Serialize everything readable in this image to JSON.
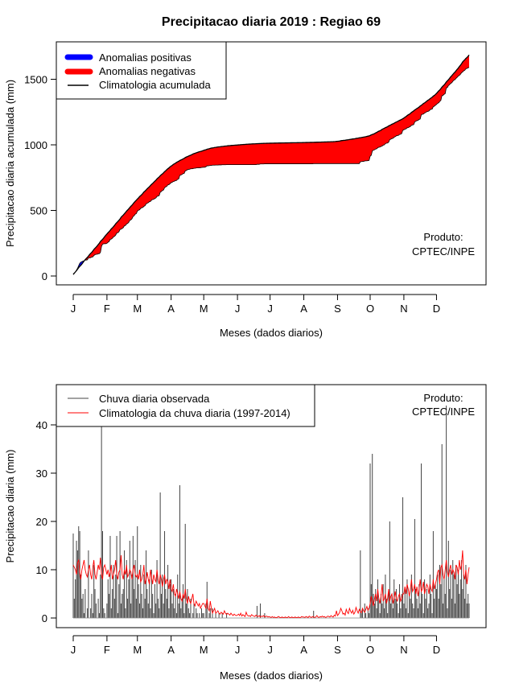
{
  "chart_data": [
    {
      "type": "area",
      "title": "Precipitacao diaria 2019 : Regiao 69",
      "xlabel": "Meses (dados diarios)",
      "ylabel": "Precipitacao diaria acumulada (mm)",
      "x_tick_labels": [
        "J",
        "F",
        "M",
        "A",
        "M",
        "J",
        "J",
        "A",
        "S",
        "O",
        "N",
        "D"
      ],
      "y_ticks": [
        0,
        500,
        1000,
        1500
      ],
      "ylim": [
        0,
        1750
      ],
      "legend": {
        "position": "top-left",
        "entries": [
          "Anomalias positivas",
          "Anomalias negativas",
          "Climatologia acumulada"
        ]
      },
      "annotation": [
        "Produto:",
        "CPTEC/INPE"
      ],
      "series_source": "cumulative sums of daily series in chart 2",
      "colors": {
        "positive": "#0000ff",
        "negative": "#ff0000",
        "climatology": "#000000"
      }
    },
    {
      "type": "bar",
      "xlabel": "Meses (dados diarios)",
      "ylabel": "Precipitacao diaria (mm)",
      "x_tick_labels": [
        "J",
        "F",
        "M",
        "A",
        "M",
        "J",
        "J",
        "A",
        "S",
        "O",
        "N",
        "D"
      ],
      "y_ticks": [
        0,
        10,
        20,
        30,
        40
      ],
      "ylim": [
        0,
        48
      ],
      "legend": {
        "position": "top-left",
        "entries": [
          "Chuva diaria observada",
          "Climatologia da chuva diaria (1997-2014)"
        ]
      },
      "annotation": [
        "Produto:",
        "CPTEC/INPE"
      ],
      "colors": {
        "observed": "#444444",
        "climatology": "#ff0000"
      },
      "month_lengths": [
        31,
        28,
        31,
        30,
        31,
        30,
        31,
        31,
        30,
        31,
        30,
        31
      ],
      "observed": [
        17.5,
        4,
        8,
        16,
        14,
        19,
        18,
        9,
        4,
        5,
        1,
        6,
        0,
        2,
        14,
        0,
        2,
        5,
        1,
        11,
        6,
        3,
        0,
        4,
        1,
        9,
        46,
        18,
        2,
        1,
        0,
        3,
        8,
        5,
        17,
        2,
        6,
        11,
        4,
        9,
        17,
        1,
        7,
        18,
        3,
        5,
        6,
        14,
        2,
        12,
        4,
        8,
        16,
        3,
        9,
        17,
        6,
        12,
        4,
        19,
        7,
        3,
        11,
        5,
        2,
        9,
        4,
        14,
        6,
        3,
        8,
        2,
        10,
        5,
        1,
        7,
        3,
        12,
        4,
        2,
        26,
        5,
        9,
        3,
        18,
        6,
        4,
        11,
        2,
        7,
        8,
        3,
        6,
        2,
        5,
        1,
        9,
        3,
        27.5,
        2,
        4,
        7,
        1,
        19.5,
        3,
        6,
        2,
        1,
        4,
        0,
        1,
        3,
        0,
        2,
        1,
        0,
        1,
        0,
        2,
        1,
        1,
        0,
        3,
        7.5,
        0,
        1,
        2,
        0,
        2,
        0,
        0,
        1,
        0,
        0,
        1,
        0,
        0,
        1,
        0,
        0,
        0,
        1,
        0,
        0,
        0,
        0,
        0,
        0,
        0,
        0,
        0,
        0,
        0,
        0,
        0,
        0,
        0,
        0,
        0,
        0,
        0,
        0,
        0,
        0,
        0,
        0,
        0,
        0,
        0,
        2.5,
        0,
        0,
        3,
        0,
        0,
        0,
        1,
        0,
        0,
        0,
        0,
        0,
        0,
        0,
        0,
        0,
        0,
        0,
        0,
        0,
        0,
        0,
        0,
        0,
        0,
        0,
        0,
        0,
        0,
        0,
        0,
        0,
        0,
        0,
        0,
        0,
        0,
        0,
        0,
        0,
        0,
        0,
        0,
        0,
        0,
        0,
        0,
        0,
        0,
        0,
        0,
        1.5,
        0,
        0,
        0,
        0,
        0,
        0,
        0,
        0,
        0,
        0,
        0,
        0,
        0,
        0,
        0,
        0,
        0,
        0,
        0,
        0,
        0,
        0,
        0,
        0,
        0,
        0,
        0,
        0,
        0,
        0,
        0,
        0,
        0,
        0,
        0,
        0,
        0,
        0,
        0,
        0,
        0,
        0,
        14,
        1,
        2,
        0,
        3,
        1,
        0,
        2,
        1,
        32,
        7,
        34,
        5,
        3,
        6,
        2,
        8,
        4,
        1,
        5,
        3,
        7,
        2,
        9,
        4,
        1,
        6,
        20,
        3,
        5,
        2,
        8,
        4,
        6,
        3,
        1,
        7,
        2,
        5,
        25,
        3,
        6,
        2,
        8,
        1,
        5,
        4,
        9,
        3,
        2,
        20.5,
        6,
        4,
        2,
        7,
        3,
        32,
        5,
        1,
        8,
        4,
        6,
        2,
        3,
        9,
        5,
        1,
        18,
        4,
        7,
        6,
        9,
        4,
        11,
        7,
        36,
        3,
        8,
        5,
        44,
        2,
        16,
        6,
        10,
        4,
        12,
        9,
        3,
        11,
        7,
        10,
        5,
        8,
        12,
        6,
        9,
        4,
        11,
        3,
        5,
        3
      ],
      "climatology": [
        11,
        10.5,
        10,
        9,
        11.5,
        12,
        9.5,
        8,
        10,
        11,
        12,
        10,
        9,
        8.5,
        10,
        11,
        9,
        8,
        10.5,
        12,
        9,
        8,
        9.5,
        11,
        10,
        12.5,
        9,
        8,
        10.5,
        11,
        10,
        9,
        10,
        8.5,
        9.5,
        11,
        8,
        9,
        10,
        12,
        9,
        8,
        9.5,
        10,
        13,
        9,
        8,
        10,
        9,
        11,
        8.5,
        9,
        10,
        9.5,
        8,
        10,
        11,
        9,
        8.5,
        9,
        8,
        10,
        7.5,
        8,
        9,
        11,
        7,
        8,
        9.5,
        8,
        7,
        10,
        8.5,
        7,
        9,
        8,
        7.5,
        10,
        8,
        7,
        9,
        8,
        6.5,
        8,
        9,
        7,
        8,
        7.5,
        6,
        8,
        6,
        5.5,
        7,
        5,
        4.5,
        6,
        5,
        4,
        5.5,
        4,
        3.5,
        5,
        4,
        6,
        4,
        3,
        4.5,
        3.5,
        3,
        4,
        5,
        3,
        2.5,
        3.5,
        3,
        2.5,
        3,
        2,
        2.5,
        3,
        3,
        2.5,
        2,
        4,
        2,
        1.5,
        3.5,
        2,
        1,
        1.5,
        2,
        1,
        1.2,
        1.5,
        1,
        0.8,
        1.2,
        1,
        0.8,
        1.5,
        1,
        0.7,
        1,
        0.8,
        0.6,
        1,
        0.7,
        0.5,
        0.8,
        0.6,
        0.5,
        0.6,
        0.8,
        0.5,
        1,
        0.4,
        0.7,
        0.5,
        0.3,
        1.2,
        0.6,
        0.4,
        0.5,
        0.3,
        0.7,
        0.5,
        0.4,
        0.3,
        0.6,
        0.4,
        0.3,
        0.5,
        0.2,
        0.4,
        0.3,
        0.5,
        0.2,
        0.3,
        0.4,
        0.2,
        0.3,
        0.2,
        0.1,
        0.3,
        0.1,
        0.2,
        0.1,
        0.1,
        0.2,
        0.3,
        0.1,
        0.1,
        0.2,
        0.1,
        0.1,
        0.2,
        0.1,
        0.1,
        0.3,
        0.1,
        0.1,
        0.2,
        0.1,
        0.1,
        0.2,
        0.1,
        0.1,
        0.2,
        0.1,
        0.1,
        0.3,
        0.2,
        0.2,
        0.1,
        0.3,
        0.2,
        0.1,
        0.4,
        0.2,
        0.1,
        0.3,
        0.2,
        0.1,
        0.2,
        0.5,
        0.2,
        0.1,
        0.3,
        0.2,
        0.4,
        0.2,
        0.3,
        0.1,
        0.2,
        0.4,
        0.3,
        0.2,
        0.5,
        0.3,
        0.2,
        0.6,
        0.4,
        1.5,
        0.5,
        0.8,
        1.2,
        2,
        1.5,
        0.8,
        1,
        0.6,
        1.8,
        1.2,
        0.9,
        2,
        1.4,
        1,
        1.6,
        0.8,
        1.2,
        2.2,
        1.5,
        1,
        1.8,
        1.3,
        1.1,
        2,
        1.5,
        1.2,
        1.8,
        2.4,
        1.6,
        2,
        3,
        4.5,
        3.5,
        2.5,
        4,
        5,
        3.5,
        6,
        4,
        3,
        4.5,
        7,
        3.5,
        4,
        5,
        3,
        4,
        6,
        3.5,
        4.5,
        5,
        3,
        4,
        5.5,
        4,
        3.5,
        4.5,
        5,
        3.5,
        4,
        5,
        5,
        6.5,
        5,
        7,
        6,
        4.5,
        6,
        8,
        5.5,
        6,
        7,
        5,
        6.5,
        4.5,
        6,
        8,
        5.5,
        6,
        7.5,
        5,
        6,
        7,
        6.5,
        5,
        7,
        6,
        5.5,
        8,
        6,
        7,
        8,
        9.5,
        10,
        7,
        10.5,
        11,
        9,
        8,
        10,
        12,
        9.5,
        8.5,
        10,
        11,
        9,
        10,
        9.5,
        8,
        11,
        10.5,
        9,
        12,
        10,
        11,
        14,
        9,
        8,
        10,
        7,
        9,
        10.5
      ]
    }
  ]
}
